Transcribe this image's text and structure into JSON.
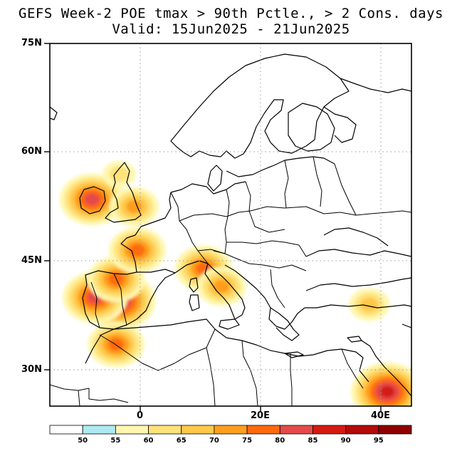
{
  "title": {
    "line1": "GEFS Week-2 POE tmax > 90th Pctle., > 2 Cons. days",
    "line2": "Valid: 15Jun2025 - 21Jun2025"
  },
  "axes": {
    "lat_labels": [
      "75N",
      "60N",
      "45N",
      "30N"
    ],
    "lon_labels": [
      "0",
      "20E",
      "40E"
    ],
    "lat_range": [
      25,
      75
    ],
    "lon_range": [
      -15,
      45
    ],
    "gridlines": "dotted"
  },
  "colorbar": {
    "labels": [
      "50",
      "55",
      "60",
      "65",
      "70",
      "75",
      "80",
      "85",
      "90",
      "95"
    ],
    "colors": [
      "#ffffff",
      "#aeeaf2",
      "#fff7b0",
      "#ffe27a",
      "#ffc84a",
      "#ff9e1f",
      "#ff6a0d",
      "#e44a4a",
      "#d41a12",
      "#b30a0a",
      "#8e0000"
    ]
  },
  "chart_data": {
    "type": "heatmap",
    "variable": "probability of exceedance (%)",
    "hotspots": [
      {
        "region": "Central Spain",
        "lon": -3.5,
        "lat": 39.5,
        "level": 85
      },
      {
        "region": "Western Iberia",
        "lon": -7.5,
        "lat": 40.0,
        "level": 80
      },
      {
        "region": "Northern Spain",
        "lon": -4.0,
        "lat": 42.5,
        "level": 75
      },
      {
        "region": "Morocco",
        "lon": -4.0,
        "lat": 33.5,
        "level": 75
      },
      {
        "region": "Western France",
        "lon": -0.5,
        "lat": 46.5,
        "level": 75
      },
      {
        "region": "Ireland",
        "lon": -8.0,
        "lat": 53.5,
        "level": 80
      },
      {
        "region": "England",
        "lon": -1.0,
        "lat": 52.5,
        "level": 70
      },
      {
        "region": "Scotland",
        "lon": -3.5,
        "lat": 57.0,
        "level": 60
      },
      {
        "region": "Northern Italy",
        "lon": 10.5,
        "lat": 44.0,
        "level": 75
      },
      {
        "region": "Central Italy",
        "lon": 13.5,
        "lat": 41.5,
        "level": 70
      },
      {
        "region": "Turkey",
        "lon": 38.0,
        "lat": 39.0,
        "level": 65
      },
      {
        "region": "Middle East",
        "lon": 41.0,
        "lat": 27.0,
        "level": 85
      }
    ]
  }
}
